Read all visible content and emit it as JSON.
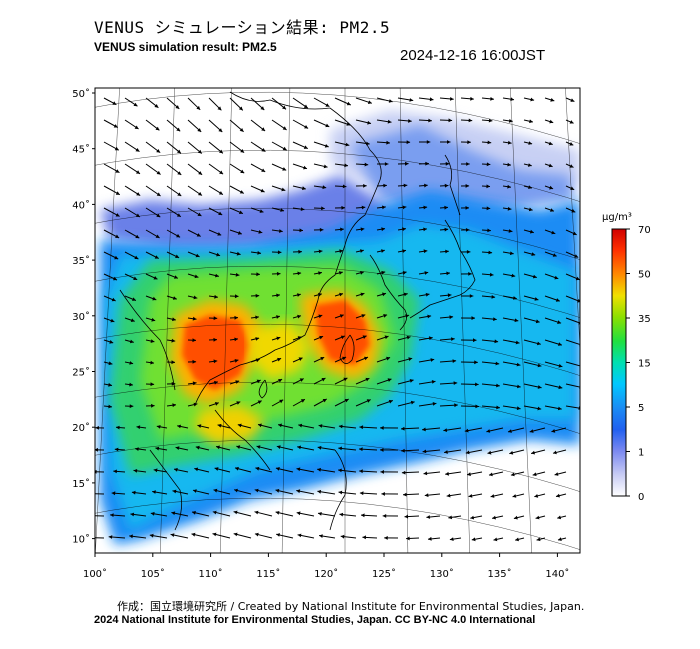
{
  "header": {
    "title_jp": "VENUS シミュレーション結果: PM2.5",
    "title_en": "VENUS simulation result: PM2.5",
    "timestamp": "2024-12-16 16:00JST"
  },
  "map": {
    "lat_ticks": [
      "50˚",
      "45˚",
      "40˚",
      "35˚",
      "30˚",
      "25˚",
      "20˚",
      "15˚",
      "10˚"
    ],
    "lon_ticks": [
      "100˚",
      "105˚",
      "110˚",
      "115˚",
      "120˚",
      "125˚",
      "130˚",
      "135˚",
      "140˚"
    ],
    "variable": "PM2.5",
    "wind_vectors": "shown"
  },
  "colorbar": {
    "unit": "μg/m³",
    "labels": [
      "70",
      "50",
      "35",
      "15",
      "5",
      "1",
      "0"
    ],
    "colors": [
      "#ff0000",
      "#ff8a00",
      "#f4e000",
      "#6fe800",
      "#00c8ff",
      "#1050ff",
      "#ffffff"
    ]
  },
  "footer": {
    "credit": "作成：国立環境研究所 / Created by National Institute for Environmental Studies, Japan.",
    "copyright": "2024 National Institute for Environmental Studies, Japan. CC BY-NC 4.0 International"
  }
}
